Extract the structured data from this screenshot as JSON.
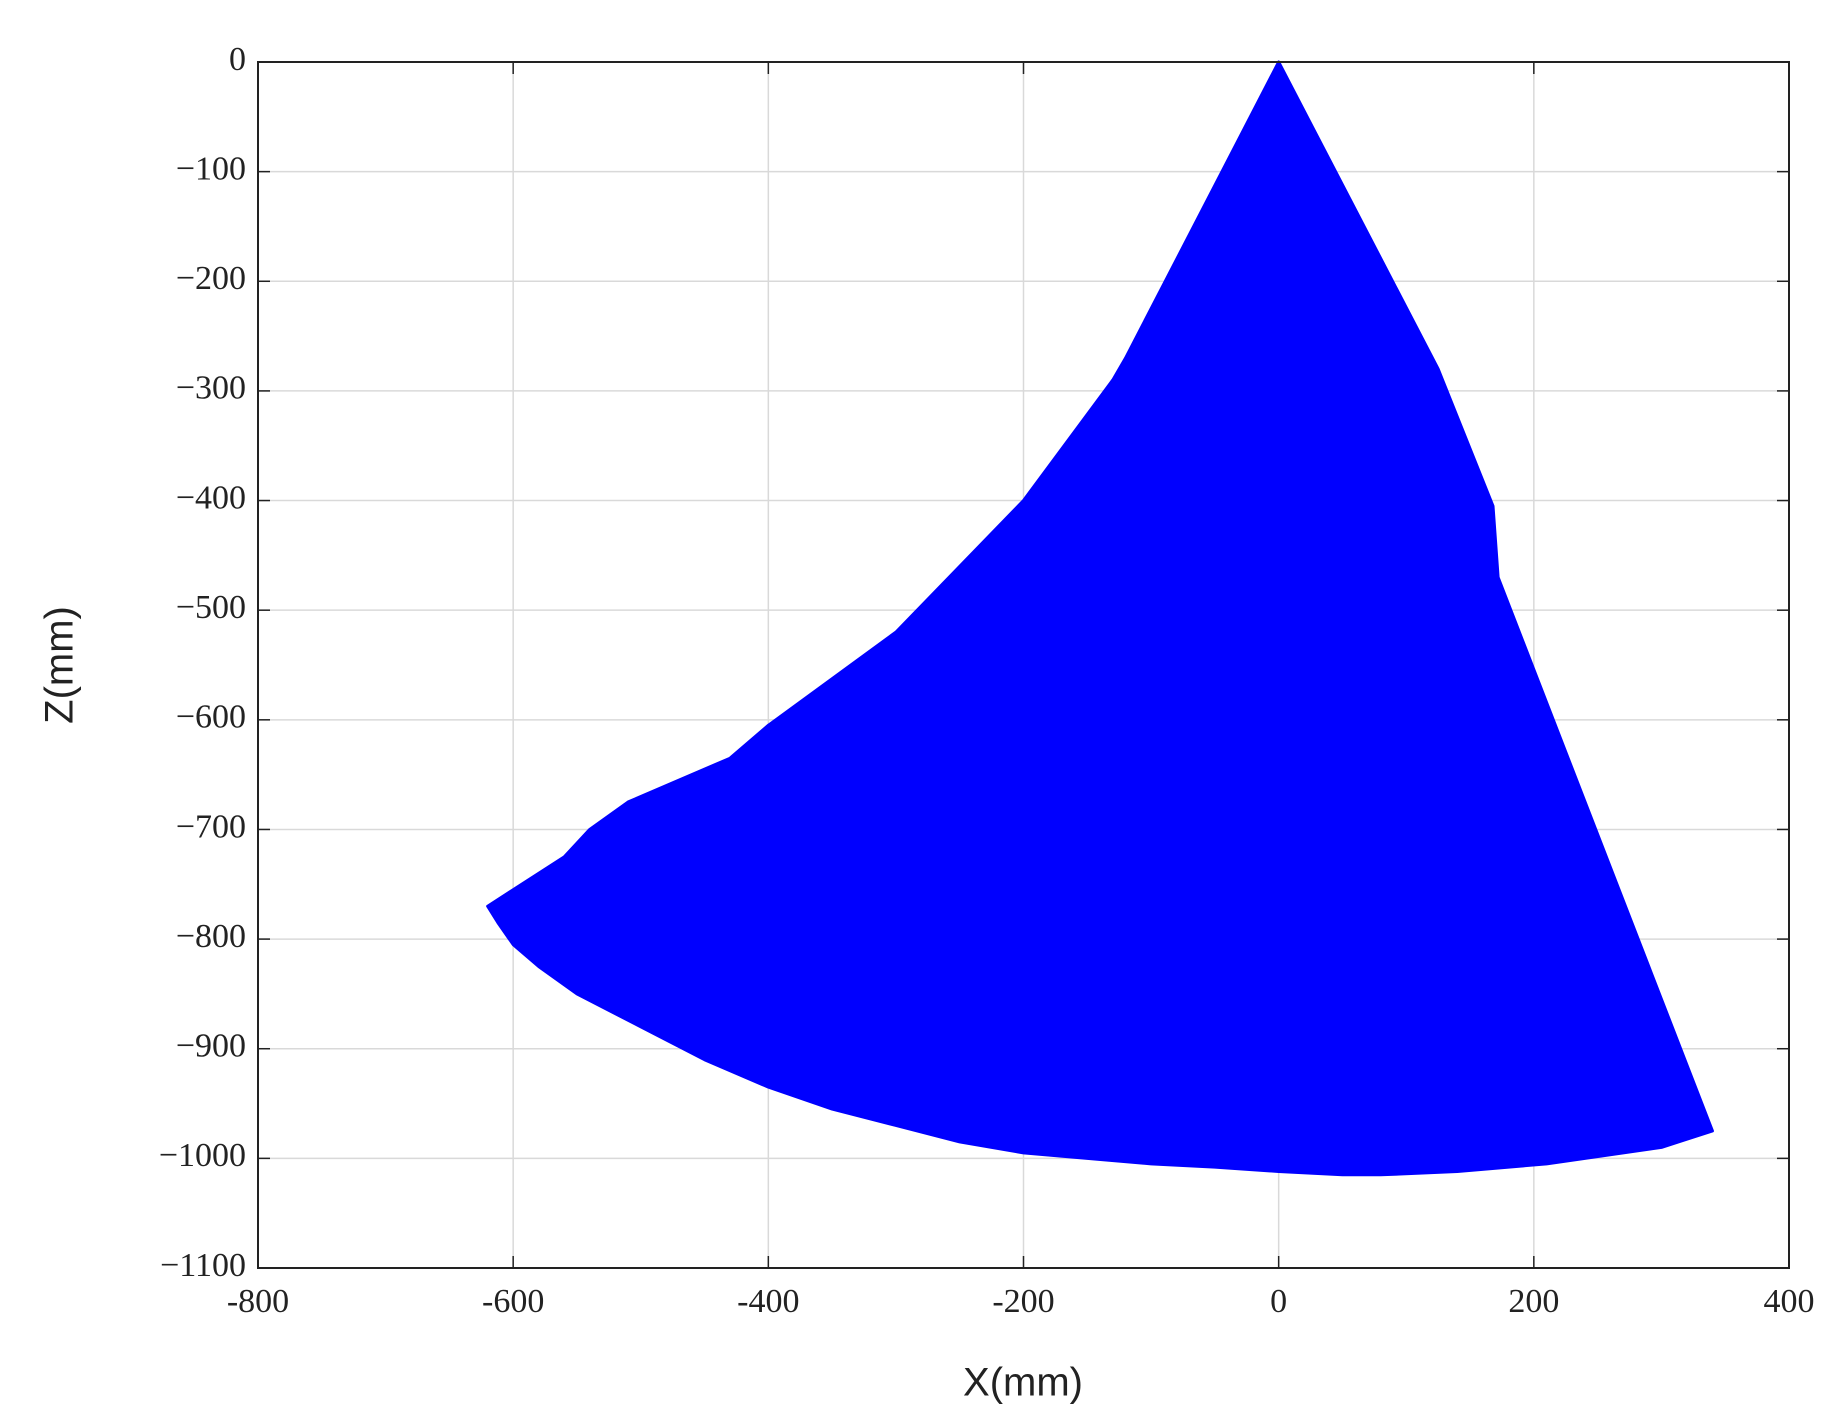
{
  "chart_data": {
    "type": "area",
    "xlabel": "X(mm)",
    "ylabel": "Z(mm)",
    "xlim": [
      -800,
      400
    ],
    "xticks": [
      -800,
      -600,
      -400,
      -200,
      0,
      200,
      400
    ],
    "ylim": [
      -1100,
      0
    ],
    "yticks": [
      0,
      {
        "value": -100,
        "label": "−100"
      },
      {
        "value": -200,
        "label": "−200"
      },
      {
        "value": -300,
        "label": "−300"
      },
      {
        "value": -400,
        "label": "−400"
      },
      {
        "value": -500,
        "label": "−500"
      },
      {
        "value": -600,
        "label": "−600"
      },
      {
        "value": -700,
        "label": "−700"
      },
      {
        "value": -800,
        "label": "−800"
      },
      {
        "value": -900,
        "label": "−900"
      },
      {
        "value": -1000,
        "label": "−1000"
      },
      {
        "value": -1100,
        "label": "−1100"
      }
    ],
    "grid": true,
    "series": [
      {
        "color": "#0000ff",
        "x": [
          0,
          125,
          168,
          172,
          340,
          300,
          210,
          140,
          80,
          50,
          0,
          -50,
          -100,
          -150,
          -200,
          -250,
          -300,
          -350,
          -400,
          -450,
          -500,
          -550,
          -580,
          -600,
          -612,
          -620,
          -560,
          -540,
          -510,
          -430,
          -400,
          -300,
          -200,
          -130,
          -120,
          0
        ],
        "values": [
          0,
          -280,
          -405,
          -470,
          -975,
          -990,
          -1005,
          -1012,
          -1015,
          -1015,
          -1012,
          -1008,
          -1005,
          -1000,
          -995,
          -985,
          -970,
          -955,
          -935,
          -910,
          -880,
          -850,
          -825,
          -805,
          -785,
          -770,
          -725,
          -700,
          -675,
          -635,
          -605,
          -520,
          -400,
          -290,
          -270,
          0
        ]
      }
    ]
  }
}
